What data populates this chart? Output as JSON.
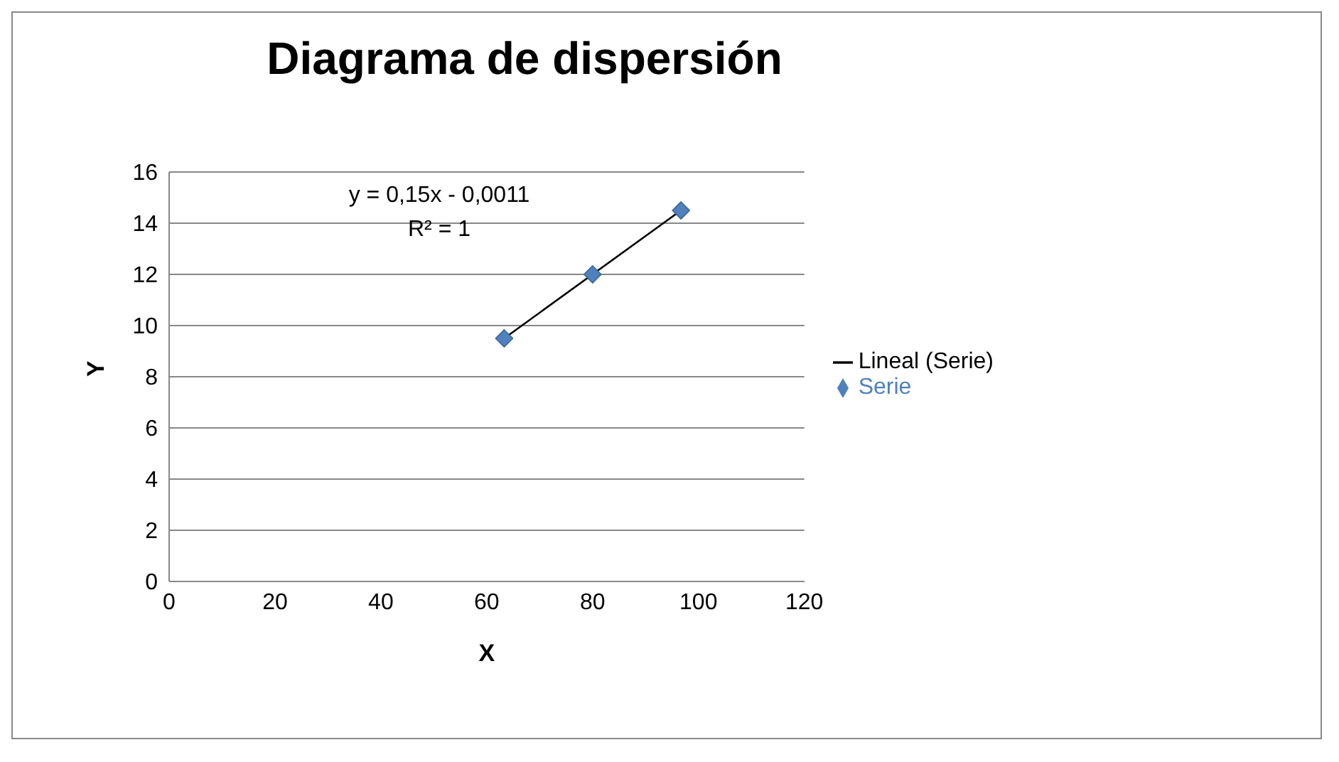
{
  "chart_data": {
    "type": "scatter",
    "title": "Diagrama de dispersión",
    "xlabel": "X",
    "ylabel": "Y",
    "series": [
      {
        "name": "Serie",
        "type": "scatter",
        "color": "#4f81bd",
        "marker": "diamond",
        "x": [
          63.3,
          80,
          96.7
        ],
        "values": [
          9.5,
          12,
          14.5
        ]
      },
      {
        "name": "Lineal (Serie)",
        "type": "line",
        "color": "#000000",
        "marker": "none",
        "line_style": "solid",
        "x": [
          63.3,
          96.7
        ],
        "values": [
          9.5,
          14.5
        ]
      }
    ],
    "xlim": [
      0,
      120
    ],
    "xticks": [
      0,
      20,
      40,
      60,
      80,
      100,
      120
    ],
    "ylim": [
      0,
      16
    ],
    "yticks": [
      0,
      2,
      4,
      6,
      8,
      10,
      12,
      14,
      16
    ],
    "grid": "y",
    "legend": "right",
    "annotations": [
      "y = 0,15x - 0,0011",
      "R² = 1"
    ]
  }
}
